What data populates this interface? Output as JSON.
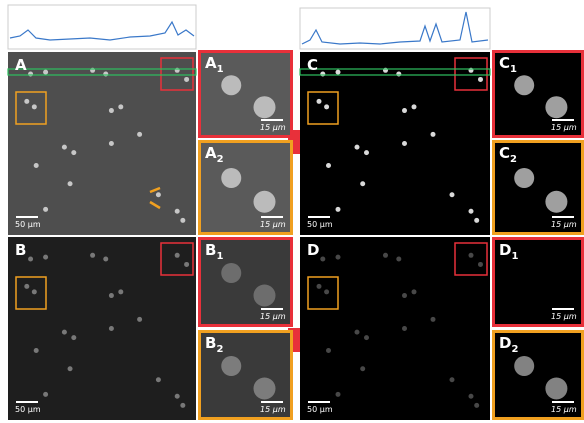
{
  "panels": [
    {
      "label": "A",
      "scale_bar": "50 μm"
    },
    {
      "label": "A",
      "subscript": "1",
      "scale_bar": "15 μm"
    },
    {
      "label": "A",
      "subscript": "2",
      "scale_bar": "15 μm"
    },
    {
      "label": "B",
      "scale_bar": "50 μm"
    },
    {
      "label": "B",
      "subscript": "1",
      "scale_bar": "15 μm"
    },
    {
      "label": "B",
      "subscript": "2",
      "scale_bar": "15 μm"
    },
    {
      "label": "C",
      "scale_bar": "50 μm"
    },
    {
      "label": "C",
      "subscript": "1",
      "scale_bar": "15 μm"
    },
    {
      "label": "C",
      "subscript": "2",
      "scale_bar": "15 μm"
    },
    {
      "label": "D",
      "scale_bar": "50 μm"
    },
    {
      "label": "D",
      "subscript": "1",
      "scale_bar": "15 μm"
    },
    {
      "label": "D",
      "subscript": "2",
      "scale_bar": "15 μm"
    }
  ]
}
